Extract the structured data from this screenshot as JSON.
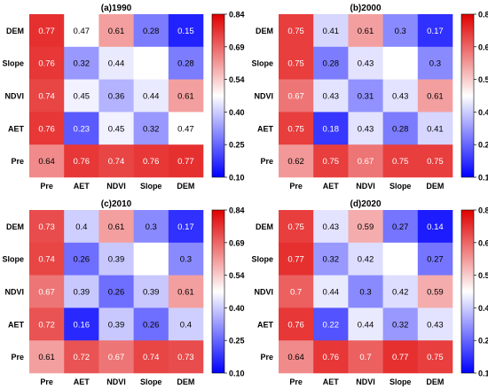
{
  "colorbar": {
    "min": 0.1,
    "max": 0.84,
    "ticks": [
      "0.84",
      "0.69",
      "0.54",
      "0.40",
      "0.25",
      "0.10"
    ],
    "colors": {
      "low": "#0000ff",
      "mid": "#ffffff",
      "high": "#e00000"
    }
  },
  "chart_data": [
    {
      "type": "heatmap",
      "title": "(a)1990",
      "x_labels": [
        "Pre",
        "AET",
        "NDVI",
        "Slope",
        "DEM"
      ],
      "y_labels": [
        "DEM",
        "Slope",
        "NDVI",
        "AET",
        "Pre"
      ],
      "values": [
        [
          0.77,
          0.47,
          0.61,
          0.28,
          0.15
        ],
        [
          0.76,
          0.32,
          0.44,
          null,
          0.28
        ],
        [
          0.74,
          0.45,
          0.36,
          0.44,
          0.61
        ],
        [
          0.76,
          0.23,
          0.45,
          0.32,
          0.47
        ],
        [
          0.64,
          0.76,
          0.74,
          0.76,
          0.77
        ]
      ],
      "scale": [
        0.1,
        0.84
      ]
    },
    {
      "type": "heatmap",
      "title": "(b)2000",
      "x_labels": [
        "Pre",
        "AET",
        "NDVI",
        "Slope",
        "DEM"
      ],
      "y_labels": [
        "DEM",
        "Slope",
        "NDVI",
        "AET",
        "Pre"
      ],
      "values": [
        [
          0.75,
          0.41,
          0.61,
          0.3,
          0.17
        ],
        [
          0.75,
          0.28,
          0.43,
          null,
          0.3
        ],
        [
          0.67,
          0.43,
          0.31,
          0.43,
          0.61
        ],
        [
          0.75,
          0.18,
          0.43,
          0.28,
          0.41
        ],
        [
          0.62,
          0.75,
          0.67,
          0.75,
          0.75
        ]
      ],
      "scale": [
        0.1,
        0.84
      ]
    },
    {
      "type": "heatmap",
      "title": "(c)2010",
      "x_labels": [
        "Pre",
        "AET",
        "NDVI",
        "Slope",
        "DEM"
      ],
      "y_labels": [
        "DEM",
        "Slope",
        "NDVI",
        "AET",
        "Pre"
      ],
      "values": [
        [
          0.73,
          0.4,
          0.61,
          0.3,
          0.17
        ],
        [
          0.74,
          0.26,
          0.39,
          null,
          0.3
        ],
        [
          0.67,
          0.39,
          0.26,
          0.39,
          0.61
        ],
        [
          0.72,
          0.16,
          0.39,
          0.26,
          0.4
        ],
        [
          0.61,
          0.72,
          0.67,
          0.74,
          0.73
        ]
      ],
      "scale": [
        0.1,
        0.84
      ]
    },
    {
      "type": "heatmap",
      "title": "(d)2020",
      "x_labels": [
        "Pre",
        "AET",
        "NDVI",
        "Slope",
        "DEM"
      ],
      "y_labels": [
        "DEM",
        "Slope",
        "NDVI",
        "AET",
        "Pre"
      ],
      "values": [
        [
          0.75,
          0.43,
          0.59,
          0.27,
          0.14
        ],
        [
          0.77,
          0.32,
          0.42,
          null,
          0.27
        ],
        [
          0.7,
          0.44,
          0.3,
          0.42,
          0.59
        ],
        [
          0.76,
          0.22,
          0.44,
          0.32,
          0.43
        ],
        [
          0.64,
          0.76,
          0.7,
          0.77,
          0.75
        ]
      ],
      "scale": [
        0.1,
        0.84
      ]
    }
  ]
}
